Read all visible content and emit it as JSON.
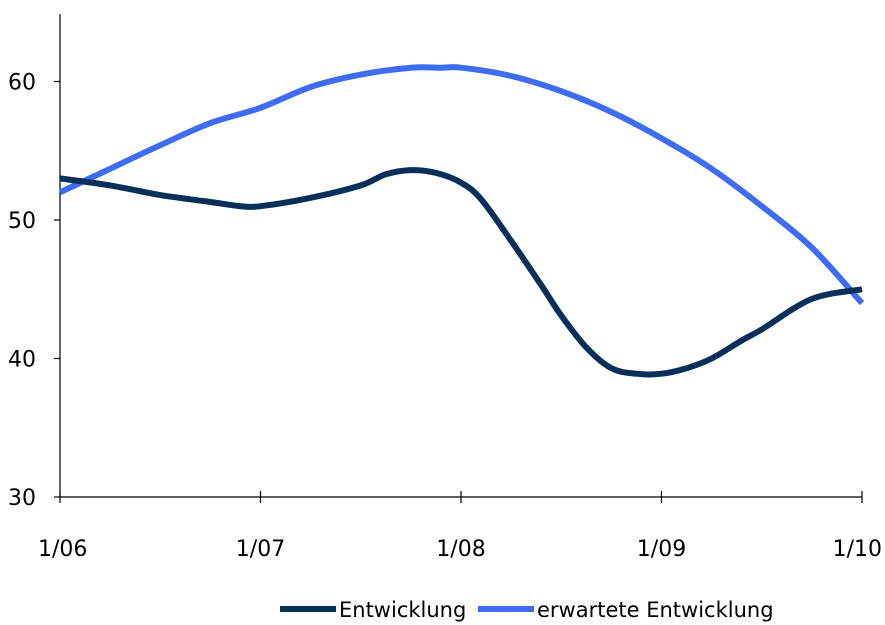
{
  "chart_data": {
    "type": "line",
    "x_tick_labels": [
      "1/06",
      "1/07",
      "1/08",
      "1/09",
      "1/10"
    ],
    "y_tick_labels": [
      "30",
      "40",
      "50",
      "60"
    ],
    "xlim": [
      0,
      4
    ],
    "ylim": [
      30,
      65
    ],
    "grid": false,
    "legend_position": "bottom",
    "series": [
      {
        "name": "Entwicklung",
        "color": "#06305a",
        "points": [
          [
            0.0,
            53.0
          ],
          [
            0.25,
            52.5
          ],
          [
            0.5,
            51.8
          ],
          [
            0.75,
            51.3
          ],
          [
            0.9,
            51.0
          ],
          [
            1.0,
            51.0
          ],
          [
            1.25,
            51.6
          ],
          [
            1.5,
            52.5
          ],
          [
            1.625,
            53.3
          ],
          [
            1.75,
            53.6
          ],
          [
            1.875,
            53.4
          ],
          [
            2.0,
            52.7
          ],
          [
            2.1,
            51.5
          ],
          [
            2.25,
            48.5
          ],
          [
            2.4,
            45.3
          ],
          [
            2.5,
            43.1
          ],
          [
            2.625,
            40.8
          ],
          [
            2.75,
            39.3
          ],
          [
            2.875,
            38.9
          ],
          [
            3.0,
            38.9
          ],
          [
            3.125,
            39.3
          ],
          [
            3.25,
            40.0
          ],
          [
            3.4,
            41.3
          ],
          [
            3.5,
            42.1
          ],
          [
            3.75,
            44.3
          ],
          [
            4.0,
            45.0
          ]
        ]
      },
      {
        "name": "erwartete Entwicklung",
        "color": "#3f6cf5",
        "points": [
          [
            0.0,
            52.0
          ],
          [
            0.25,
            53.7
          ],
          [
            0.5,
            55.4
          ],
          [
            0.75,
            57.0
          ],
          [
            1.0,
            58.1
          ],
          [
            1.25,
            59.6
          ],
          [
            1.5,
            60.5
          ],
          [
            1.75,
            61.0
          ],
          [
            1.9,
            61.0
          ],
          [
            2.0,
            61.0
          ],
          [
            2.25,
            60.4
          ],
          [
            2.5,
            59.3
          ],
          [
            2.75,
            57.8
          ],
          [
            3.0,
            55.9
          ],
          [
            3.25,
            53.7
          ],
          [
            3.5,
            51.0
          ],
          [
            3.75,
            48.0
          ],
          [
            4.0,
            44.0
          ]
        ]
      }
    ]
  }
}
